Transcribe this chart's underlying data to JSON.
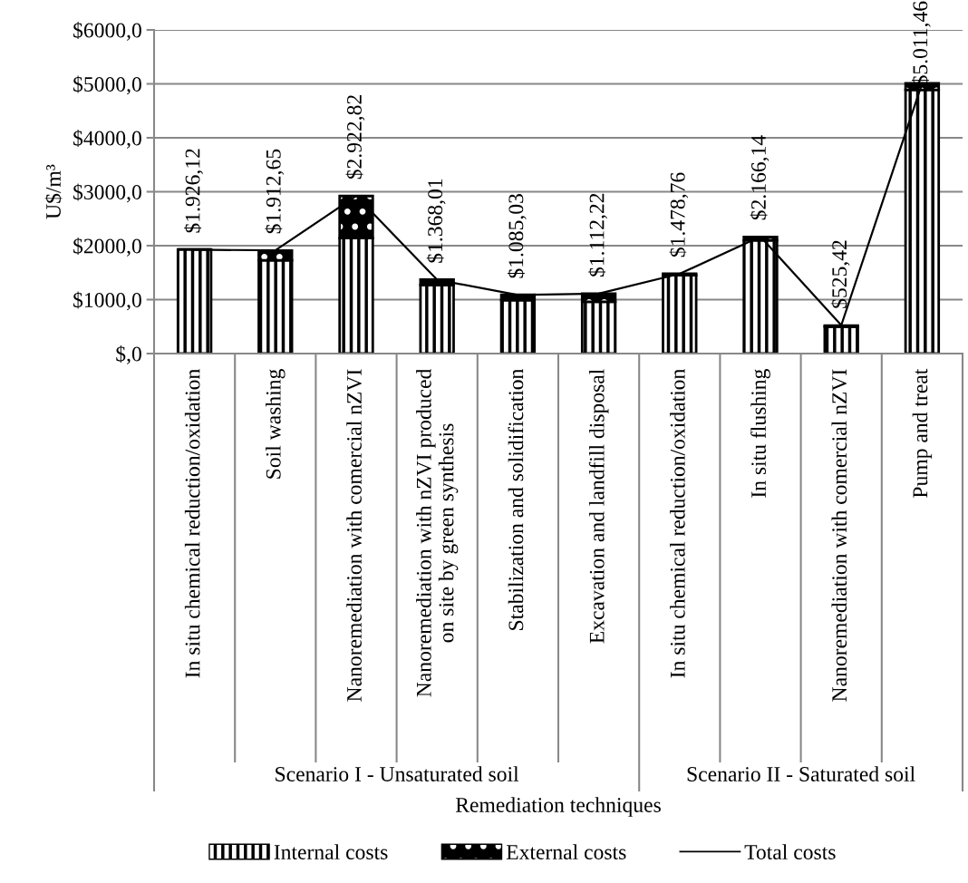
{
  "chart_data": {
    "type": "bar",
    "stacked": true,
    "xlabel": "Remediation techniques",
    "ylabel": "U$/m³",
    "categories": [
      "In situ chemical reduction/oxidation",
      "Soil washing",
      "Nanoremediation with comercial nZVI",
      "Nanoremediation with nZVI produced\non site by green synthesis",
      "Stabilization and solidification",
      "Excavation and landfill disposal",
      "In situ chemical reduction/oxidation",
      "In situ flushing",
      "Nanoremediation with comercial nZVI",
      "Pump and treat"
    ],
    "series": [
      {
        "name": "Internal costs",
        "color": "#000000",
        "values": [
          1930,
          1730,
          2140,
          1270,
          990,
          960,
          1450,
          2100,
          500,
          4890
        ]
      },
      {
        "name": "External costs",
        "color": "#000000",
        "values": [
          0,
          180,
          780,
          100,
          100,
          150,
          30,
          60,
          20,
          120
        ]
      },
      {
        "name": "Total costs",
        "type": "line",
        "color": "#000000",
        "values": [
          1926.12,
          1912.65,
          2922.82,
          1368.01,
          1085.03,
          1112.22,
          1478.76,
          2166.14,
          525.42,
          5011.46
        ],
        "value_labels": [
          "$1.926,12",
          "$1.912,65",
          "$2.922,82",
          "$1.368,01",
          "$1.085,03",
          "$1.112,22",
          "$1.478,76",
          "$2.166,14",
          "$525,42",
          "$5.011,46"
        ]
      }
    ],
    "ylim": [
      0,
      6000
    ],
    "yticks": [
      {
        "value": 0,
        "label": "$,0"
      },
      {
        "value": 1000,
        "label": "$1000,0"
      },
      {
        "value": 2000,
        "label": "$2000,0"
      },
      {
        "value": 3000,
        "label": "$3000,0"
      },
      {
        "value": 4000,
        "label": "$4000,0"
      },
      {
        "value": 5000,
        "label": "$5000,0"
      },
      {
        "value": 6000,
        "label": "$6000,0"
      }
    ],
    "grid": "y",
    "legend": "bottom",
    "annotations": [
      "Scenario I - Unsaturated soil",
      "Scenario II - Saturated soil"
    ]
  }
}
